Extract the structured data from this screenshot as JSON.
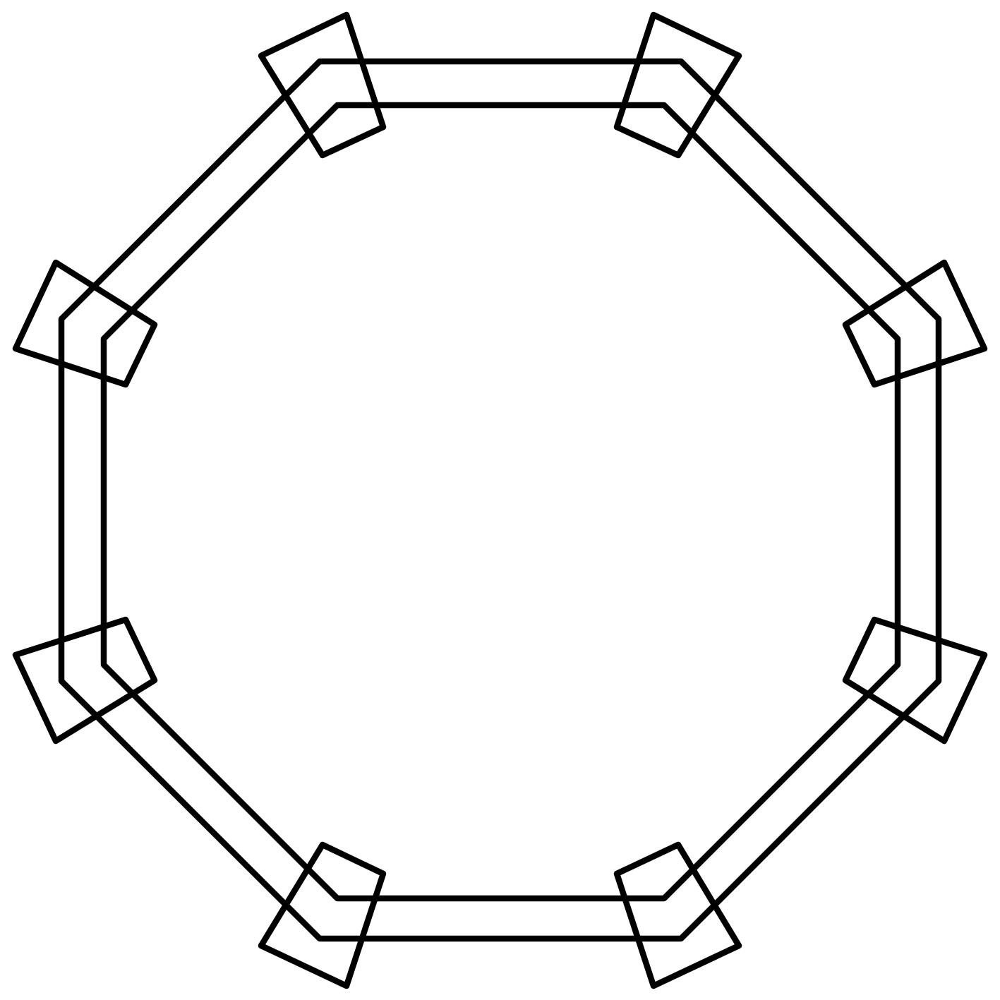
{
  "diagram": {
    "shape": "octagon",
    "background_color": "#ffffff",
    "stroke_color": "#000000",
    "bands": [
      "outer-octagon",
      "inner-octagon"
    ],
    "corner_ornaments": [
      "corner-diamond-top-left",
      "corner-diamond-top-right",
      "corner-diamond-right-upper",
      "corner-diamond-right-lower",
      "corner-diamond-bottom-right",
      "corner-diamond-bottom-left",
      "corner-diamond-left-lower",
      "corner-diamond-left-upper"
    ]
  }
}
